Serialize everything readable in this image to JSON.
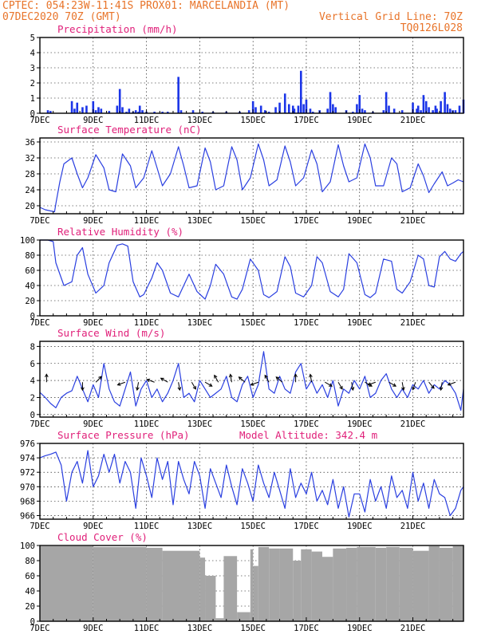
{
  "header": {
    "line1_left": "CPTEC:  054:23W-11:41S  PROX01: MARCELANDIA (MT)",
    "line2_left": "07DEC2020 70Z (GMT)",
    "line2_right": "Vertical Grid Line: 70Z",
    "line3_right": "TQ0126L028"
  },
  "colors": {
    "header": "#e8742a",
    "title": "#e0207a",
    "line": "#2a3fe0",
    "bar": "#1b35e8",
    "cloud": "#a6a6a6"
  },
  "x_ticks": [
    "7DEC",
    "9DEC",
    "11DEC",
    "13DEC",
    "15DEC",
    "17DEC",
    "19DEC",
    "21DEC"
  ],
  "chart_data": [
    {
      "type": "bar",
      "title": "Precipitation  (mm/h)",
      "ylim": [
        0,
        5
      ],
      "yticks": [
        0,
        1,
        2,
        3,
        4,
        5
      ],
      "grid": true,
      "x_days": [
        0.3,
        0.4,
        1.2,
        1.3,
        1.4,
        1.6,
        1.75,
        2.0,
        2.1,
        2.2,
        2.3,
        2.6,
        2.9,
        3.0,
        3.1,
        3.25,
        3.35,
        3.5,
        3.6,
        3.7,
        3.75,
        3.85,
        4.0,
        4.3,
        4.6,
        4.8,
        5.2,
        5.3,
        5.75,
        6.1,
        6.5,
        7.0,
        7.5,
        7.85,
        8.0,
        8.1,
        8.3,
        8.45,
        8.6,
        8.85,
        9.0,
        9.2,
        9.35,
        9.5,
        9.55,
        9.7,
        9.8,
        9.9,
        10.0,
        10.15,
        10.25,
        10.5,
        10.8,
        10.9,
        11.0,
        11.1,
        11.5,
        11.75,
        11.9,
        12.0,
        12.1,
        12.2,
        12.5,
        12.9,
        13.0,
        13.1,
        13.3,
        13.6,
        14.0,
        14.15,
        14.2,
        14.3,
        14.4,
        14.5,
        14.6,
        14.75,
        14.85,
        14.9,
        15.05,
        15.2,
        15.3,
        15.4,
        15.5,
        15.6,
        15.75,
        15.9
      ],
      "values": [
        0.2,
        0.15,
        0.8,
        0.3,
        0.7,
        0.4,
        0.5,
        0.8,
        0.2,
        0.4,
        0.3,
        0.15,
        0.5,
        1.6,
        0.4,
        0.1,
        0.3,
        0.1,
        0.2,
        0.1,
        0.5,
        0.2,
        0.1,
        0.1,
        0.1,
        0.1,
        2.4,
        0.2,
        0.2,
        0.1,
        0.1,
        0.1,
        0.1,
        0.2,
        0.8,
        0.4,
        0.5,
        0.2,
        0.1,
        0.4,
        0.7,
        1.3,
        0.6,
        0.5,
        0.3,
        0.5,
        2.8,
        0.6,
        0.9,
        0.3,
        0.1,
        0.2,
        0.3,
        1.4,
        0.6,
        0.4,
        0.2,
        0.1,
        0.6,
        1.2,
        0.3,
        0.2,
        0.1,
        0.2,
        1.4,
        0.5,
        0.3,
        0.2,
        0.7,
        0.3,
        0.5,
        0.2,
        1.2,
        0.8,
        0.4,
        0.2,
        0.5,
        0.3,
        0.8,
        1.4,
        0.6,
        0.3,
        0.2,
        0.2,
        0.5,
        0.9
      ]
    },
    {
      "type": "line",
      "title": "Surface Temperature (nC)",
      "ylim": [
        18,
        37
      ],
      "yticks": [
        20,
        24,
        28,
        32,
        36
      ],
      "grid": true,
      "x_days": [
        0.0,
        0.2,
        0.4,
        0.55,
        0.6,
        0.75,
        0.9,
        1.2,
        1.4,
        1.6,
        1.8,
        2.1,
        2.4,
        2.6,
        2.85,
        3.1,
        3.4,
        3.6,
        3.9,
        4.2,
        4.4,
        4.6,
        4.9,
        5.2,
        5.4,
        5.6,
        5.9,
        6.2,
        6.4,
        6.6,
        6.9,
        7.2,
        7.4,
        7.6,
        7.9,
        8.2,
        8.4,
        8.6,
        8.9,
        9.2,
        9.4,
        9.6,
        9.9,
        10.2,
        10.4,
        10.6,
        10.9,
        11.2,
        11.4,
        11.6,
        11.9,
        12.2,
        12.4,
        12.6,
        12.9,
        13.2,
        13.4,
        13.6,
        13.9,
        14.2,
        14.4,
        14.6,
        14.8,
        15.1,
        15.3,
        15.5,
        15.7,
        15.9
      ],
      "values": [
        19.6,
        19.0,
        18.7,
        18.5,
        20.5,
        26.0,
        30.5,
        32.0,
        28.0,
        24.5,
        27.0,
        32.8,
        29.5,
        24.0,
        23.5,
        33.0,
        30.0,
        24.5,
        27.0,
        33.8,
        29.5,
        25.0,
        28.0,
        34.8,
        30.0,
        24.5,
        25.0,
        34.5,
        31.0,
        24.0,
        25.0,
        34.8,
        31.5,
        24.0,
        27.0,
        35.5,
        31.5,
        25.0,
        26.5,
        35.0,
        31.0,
        25.0,
        27.0,
        34.0,
        30.5,
        23.5,
        26.0,
        35.3,
        30.0,
        26.0,
        27.0,
        35.5,
        32.0,
        25.0,
        25.0,
        32.0,
        30.5,
        23.5,
        24.5,
        30.5,
        27.5,
        23.3,
        25.5,
        28.5,
        25.0,
        25.7,
        26.5,
        26.0
      ]
    },
    {
      "type": "line",
      "title": "Relative Humidity  (%)",
      "ylim": [
        0,
        100
      ],
      "yticks": [
        0,
        20,
        40,
        60,
        80,
        100
      ],
      "grid": true,
      "x_days": [
        0.0,
        0.3,
        0.5,
        0.6,
        0.9,
        1.2,
        1.4,
        1.6,
        1.8,
        2.1,
        2.4,
        2.6,
        2.9,
        3.1,
        3.3,
        3.5,
        3.75,
        3.9,
        4.2,
        4.4,
        4.6,
        4.9,
        5.2,
        5.4,
        5.6,
        5.9,
        6.2,
        6.4,
        6.6,
        6.9,
        7.2,
        7.4,
        7.6,
        7.9,
        8.2,
        8.4,
        8.6,
        8.9,
        9.2,
        9.4,
        9.6,
        9.9,
        10.2,
        10.4,
        10.6,
        10.9,
        11.2,
        11.4,
        11.6,
        11.9,
        12.2,
        12.4,
        12.6,
        12.9,
        13.2,
        13.4,
        13.6,
        13.9,
        14.2,
        14.4,
        14.6,
        14.8,
        15.0,
        15.2,
        15.4,
        15.6,
        15.8,
        15.9
      ],
      "values": [
        100,
        100,
        98,
        70,
        40,
        45,
        80,
        90,
        55,
        30,
        40,
        70,
        93,
        95,
        92,
        45,
        25,
        28,
        50,
        70,
        60,
        30,
        25,
        40,
        55,
        32,
        22,
        40,
        68,
        55,
        25,
        22,
        35,
        75,
        60,
        28,
        24,
        32,
        78,
        65,
        30,
        25,
        40,
        78,
        70,
        32,
        25,
        35,
        82,
        70,
        28,
        24,
        30,
        75,
        72,
        35,
        30,
        45,
        80,
        75,
        40,
        38,
        78,
        85,
        75,
        72,
        82,
        85
      ]
    },
    {
      "type": "line",
      "title": "Surface Wind  (m/s)",
      "ylim": [
        -0.3,
        8.6
      ],
      "yticks": [
        0,
        2,
        4,
        6,
        8
      ],
      "grid": true,
      "x_days": [
        0.0,
        0.2,
        0.4,
        0.6,
        0.8,
        1.0,
        1.2,
        1.4,
        1.6,
        1.8,
        2.0,
        2.2,
        2.4,
        2.6,
        2.8,
        3.0,
        3.2,
        3.4,
        3.6,
        3.8,
        4.0,
        4.2,
        4.4,
        4.6,
        4.8,
        5.0,
        5.2,
        5.4,
        5.6,
        5.8,
        6.0,
        6.2,
        6.4,
        6.6,
        6.8,
        7.0,
        7.2,
        7.4,
        7.6,
        7.8,
        8.0,
        8.2,
        8.4,
        8.6,
        8.8,
        9.0,
        9.2,
        9.4,
        9.6,
        9.8,
        10.0,
        10.2,
        10.4,
        10.6,
        10.8,
        11.0,
        11.2,
        11.4,
        11.6,
        11.8,
        12.0,
        12.2,
        12.4,
        12.6,
        12.8,
        13.0,
        13.2,
        13.4,
        13.6,
        13.8,
        14.0,
        14.2,
        14.4,
        14.6,
        14.8,
        15.0,
        15.2,
        15.4,
        15.6,
        15.8,
        15.9
      ],
      "values": [
        2.6,
        2.0,
        1.3,
        0.8,
        2.0,
        2.5,
        2.8,
        4.5,
        3.0,
        1.5,
        3.5,
        2.0,
        6.0,
        3.0,
        1.5,
        1.0,
        3.0,
        5.0,
        1.0,
        3.0,
        4.0,
        2.0,
        3.0,
        1.5,
        2.5,
        4.0,
        6.0,
        2.0,
        2.5,
        1.5,
        4.0,
        3.0,
        2.0,
        2.5,
        3.0,
        4.5,
        2.0,
        1.5,
        3.5,
        4.5,
        2.0,
        3.5,
        7.4,
        3.0,
        2.5,
        4.5,
        3.0,
        2.5,
        5.0,
        6.0,
        3.0,
        4.0,
        2.5,
        3.5,
        2.0,
        4.0,
        1.0,
        3.0,
        2.5,
        4.0,
        3.0,
        4.5,
        2.0,
        2.5,
        4.0,
        4.8,
        3.0,
        2.0,
        3.0,
        2.0,
        3.5,
        3.0,
        4.0,
        2.5,
        3.5,
        3.0,
        4.0,
        3.5,
        2.5,
        0.5,
        3.0
      ]
    },
    {
      "type": "line",
      "title": "Surface Pressure (hPa)",
      "annotation": "Model Altitude: 342.4 m",
      "ylim": [
        965.5,
        976
      ],
      "yticks": [
        966,
        968,
        970,
        972,
        974,
        976
      ],
      "grid": true,
      "x_days": [
        0.0,
        0.2,
        0.4,
        0.6,
        0.8,
        1.0,
        1.2,
        1.4,
        1.6,
        1.8,
        2.0,
        2.2,
        2.4,
        2.6,
        2.8,
        3.0,
        3.2,
        3.4,
        3.6,
        3.8,
        4.0,
        4.2,
        4.4,
        4.6,
        4.8,
        5.0,
        5.2,
        5.4,
        5.6,
        5.8,
        6.0,
        6.2,
        6.4,
        6.6,
        6.8,
        7.0,
        7.2,
        7.4,
        7.6,
        7.8,
        8.0,
        8.2,
        8.4,
        8.6,
        8.8,
        9.0,
        9.2,
        9.4,
        9.6,
        9.8,
        10.0,
        10.2,
        10.4,
        10.6,
        10.8,
        11.0,
        11.2,
        11.4,
        11.6,
        11.8,
        12.0,
        12.2,
        12.4,
        12.6,
        12.8,
        13.0,
        13.2,
        13.4,
        13.6,
        13.8,
        14.0,
        14.2,
        14.4,
        14.6,
        14.8,
        15.0,
        15.2,
        15.4,
        15.6,
        15.8,
        15.9
      ],
      "values": [
        974.0,
        974.3,
        974.5,
        974.8,
        973.0,
        968.0,
        972.0,
        973.5,
        970.5,
        975.0,
        970.0,
        971.5,
        974.5,
        972.0,
        974.5,
        970.5,
        973.5,
        972.0,
        967.0,
        974.0,
        971.5,
        968.5,
        974.0,
        971.0,
        973.5,
        967.5,
        973.5,
        971.0,
        969.0,
        973.5,
        971.5,
        967.0,
        972.5,
        970.5,
        968.5,
        973.0,
        970.0,
        967.5,
        972.5,
        970.5,
        968.0,
        973.0,
        970.5,
        968.5,
        972.0,
        969.5,
        967.0,
        972.5,
        968.5,
        970.5,
        969.0,
        972.0,
        968.0,
        969.5,
        967.5,
        971.0,
        967.0,
        970.0,
        965.8,
        969.0,
        969.0,
        966.5,
        971.0,
        968.0,
        970.0,
        967.0,
        971.5,
        968.5,
        969.5,
        967.0,
        972.0,
        968.0,
        970.5,
        967.0,
        971.0,
        969.0,
        968.5,
        966.0,
        967.0,
        969.5,
        970.0
      ]
    },
    {
      "type": "bar",
      "title": "Cloud Cover  (%)",
      "ylim": [
        0,
        100
      ],
      "yticks": [
        0,
        20,
        40,
        60,
        80,
        100
      ],
      "grid": true,
      "x_days": [
        0.0,
        2.0,
        4.0,
        4.6,
        6.0,
        6.2,
        6.6,
        6.9,
        7.4,
        7.9,
        8.0,
        8.2,
        8.6,
        9.0,
        9.5,
        9.8,
        10.2,
        10.6,
        11.0,
        11.5,
        11.9,
        12.6,
        13.0,
        13.5,
        14.0,
        14.6,
        15.0,
        15.5
      ],
      "values": [
        99,
        98,
        97,
        93,
        84,
        60,
        4,
        86,
        12,
        95,
        73,
        98,
        96,
        96,
        80,
        95,
        92,
        85,
        96,
        97,
        98,
        97,
        98,
        97,
        93,
        99,
        97,
        99
      ]
    }
  ],
  "wind_vectors": [
    [
      0.25,
      90
    ],
    [
      1.6,
      270
    ],
    [
      2.1,
      45
    ],
    [
      3.2,
      200
    ],
    [
      3.7,
      260
    ],
    [
      4.3,
      160
    ],
    [
      4.8,
      150
    ],
    [
      5.2,
      280
    ],
    [
      5.7,
      300
    ],
    [
      6.2,
      330
    ],
    [
      6.7,
      120
    ],
    [
      7.2,
      100
    ],
    [
      7.7,
      140
    ],
    [
      8.2,
      200
    ],
    [
      8.6,
      120
    ],
    [
      9.1,
      140
    ],
    [
      9.6,
      90
    ],
    [
      10.2,
      100
    ],
    [
      10.7,
      330
    ],
    [
      11.2,
      300
    ],
    [
      11.7,
      280
    ],
    [
      12.2,
      330
    ],
    [
      12.6,
      200
    ],
    [
      13.1,
      330
    ],
    [
      13.6,
      280
    ],
    [
      14.1,
      250
    ],
    [
      14.6,
      310
    ],
    [
      15.1,
      260
    ],
    [
      15.6,
      200
    ]
  ]
}
